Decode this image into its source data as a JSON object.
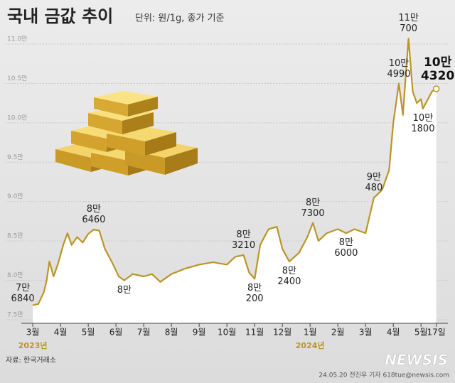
{
  "title": "국내 금값 추이",
  "subtitle": "단위: 원/1g, 종가 기준",
  "source": "자료: 한국거래소",
  "credit": "24.05.20 전진우 기자 618tue@newsis.com",
  "logo": "NEWSIS",
  "chart_data": {
    "type": "line",
    "color": "#bb9527",
    "x": [
      0,
      0.2,
      0.4,
      0.5,
      0.6,
      0.75,
      0.9,
      1.1,
      1.25,
      1.4,
      1.6,
      1.8,
      2.0,
      2.2,
      2.4,
      2.6,
      2.9,
      3.1,
      3.3,
      3.6,
      4.0,
      4.3,
      4.6,
      5.0,
      5.5,
      6.0,
      6.5,
      7.0,
      7.3,
      7.6,
      7.8,
      8.0,
      8.2,
      8.5,
      8.8,
      9.0,
      9.25,
      9.6,
      9.9,
      10.1,
      10.3,
      10.6,
      11.0,
      11.3,
      11.6,
      12.0,
      12.3,
      12.6,
      12.85,
      13.0,
      13.2,
      13.35,
      13.45,
      13.55,
      13.7,
      13.85,
      14.0,
      14.07,
      14.25,
      14.4,
      14.55
    ],
    "values": [
      76840,
      77000,
      78500,
      80000,
      82400,
      80500,
      82000,
      84500,
      86000,
      84500,
      85500,
      84800,
      85900,
      86460,
      86300,
      84000,
      82000,
      80500,
      80000,
      80800,
      80500,
      80800,
      79800,
      80800,
      81500,
      82000,
      82300,
      82000,
      83000,
      83210,
      81000,
      80200,
      84500,
      86500,
      86800,
      84000,
      82400,
      83500,
      85500,
      87300,
      85000,
      86000,
      86500,
      86000,
      86500,
      86000,
      90480,
      91500,
      94000,
      100000,
      104990,
      101000,
      106000,
      110700,
      104000,
      102500,
      103000,
      101800,
      103000,
      104000,
      104320
    ],
    "value_labels": [
      "7만\n6840",
      null,
      null,
      null,
      null,
      null,
      null,
      null,
      null,
      null,
      null,
      null,
      null,
      "8만\n6460",
      null,
      null,
      null,
      null,
      "8만",
      null,
      null,
      null,
      null,
      null,
      null,
      null,
      null,
      null,
      null,
      "8만\n3210",
      null,
      "8만\n200",
      null,
      null,
      null,
      null,
      "8만\n2400",
      null,
      null,
      "8만\n7300",
      null,
      null,
      null,
      "8만\n6000",
      null,
      null,
      "9만\n480",
      null,
      null,
      null,
      "10만\n4990",
      null,
      null,
      "11만\n700",
      null,
      null,
      null,
      "10만\n1800",
      null,
      null,
      "10만\n4320"
    ],
    "xlim": [
      -0.9,
      15.2
    ],
    "xticks": [
      {
        "value": 0,
        "label": "3월"
      },
      {
        "value": 1,
        "label": "4월"
      },
      {
        "value": 2,
        "label": "5월"
      },
      {
        "value": 3,
        "label": "6월"
      },
      {
        "value": 4,
        "label": "7월"
      },
      {
        "value": 5,
        "label": "8월"
      },
      {
        "value": 6,
        "label": "9월"
      },
      {
        "value": 7,
        "label": "10월"
      },
      {
        "value": 8,
        "label": "11월"
      },
      {
        "value": 9,
        "label": "12월"
      },
      {
        "value": 10,
        "label": "1월"
      },
      {
        "value": 11,
        "label": "2월"
      },
      {
        "value": 12,
        "label": "3월"
      },
      {
        "value": 13,
        "label": "4월"
      },
      {
        "value": 14,
        "label": "5월"
      },
      {
        "value": 14.55,
        "label": "17일"
      }
    ],
    "year_labels": [
      {
        "x": 0,
        "label": "2023년"
      },
      {
        "x": 10,
        "label": "2024년"
      }
    ],
    "ylim": [
      75000,
      110000
    ],
    "yticks": [
      {
        "value": 75000,
        "label": "7.5만"
      },
      {
        "value": 80000,
        "label": "8.0만"
      },
      {
        "value": 85000,
        "label": "8.5만"
      },
      {
        "value": 90000,
        "label": "9.0만"
      },
      {
        "value": 95000,
        "label": "9.5만"
      },
      {
        "value": 100000,
        "label": "10.0만"
      },
      {
        "value": 105000,
        "label": "10.5만"
      },
      {
        "value": 110000,
        "label": "11.0만"
      }
    ],
    "grid": true
  }
}
